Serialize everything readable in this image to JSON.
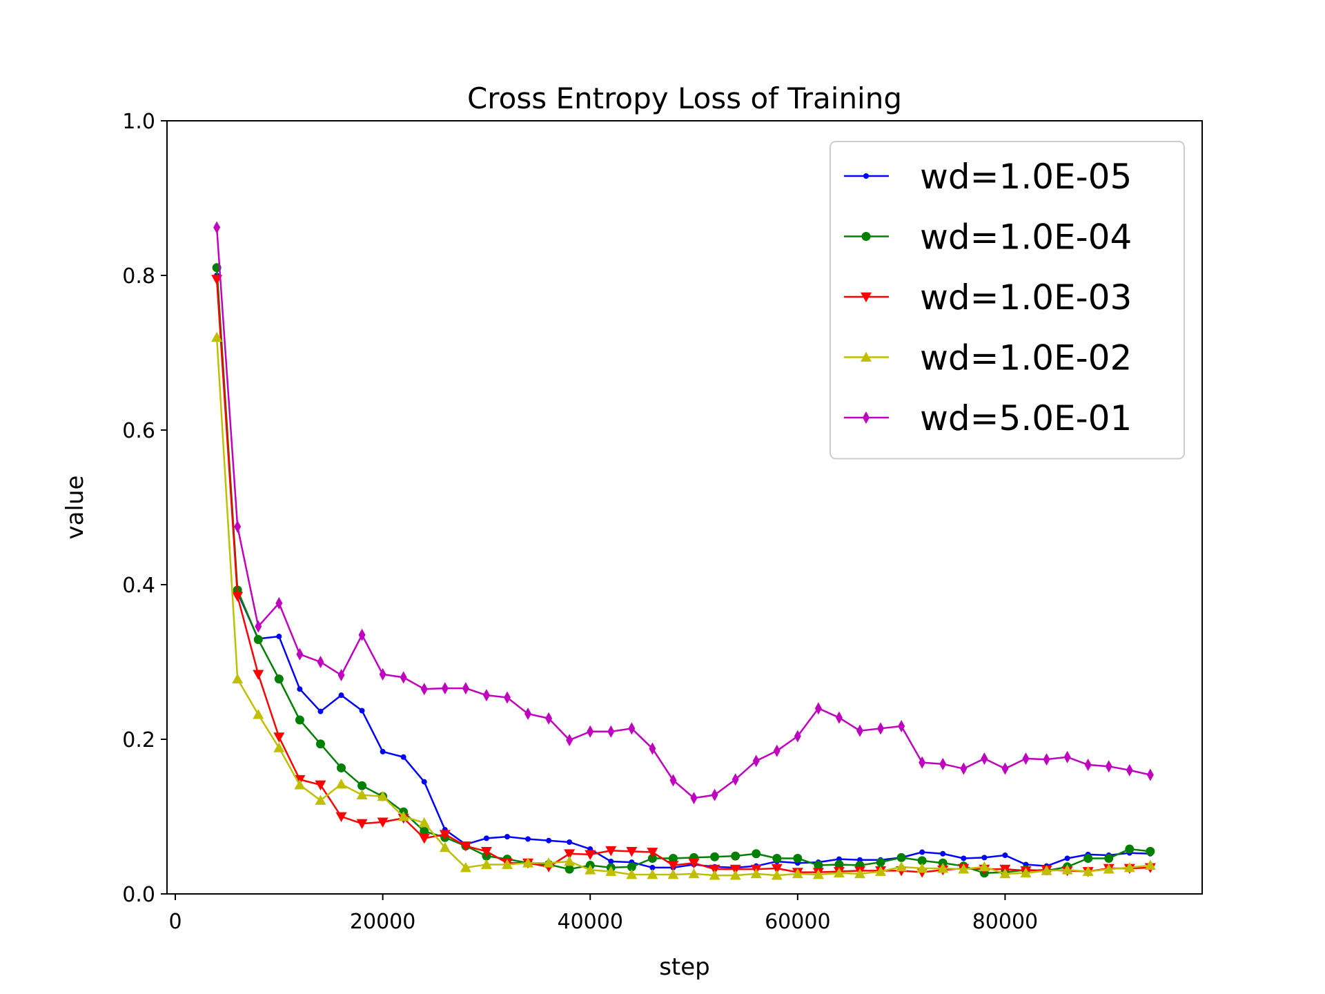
{
  "chart_data": {
    "type": "line",
    "title": "Cross Entropy Loss of Training",
    "xlabel": "step",
    "ylabel": "value",
    "xlim": [
      -800,
      99000
    ],
    "ylim": [
      0.0,
      1.0
    ],
    "xticks": [
      0,
      20000,
      40000,
      60000,
      80000
    ],
    "yticks": [
      0.0,
      0.2,
      0.4,
      0.6,
      0.8,
      1.0
    ],
    "xtick_labels": [
      "0",
      "20000",
      "40000",
      "60000",
      "80000"
    ],
    "ytick_labels": [
      "0.0",
      "0.2",
      "0.4",
      "0.6",
      "0.8",
      "1.0"
    ],
    "grid": false,
    "legend_position": "upper-right",
    "x": [
      4000,
      6000,
      8000,
      10000,
      12000,
      14000,
      16000,
      18000,
      20000,
      22000,
      24000,
      26000,
      28000,
      30000,
      32000,
      34000,
      36000,
      38000,
      40000,
      42000,
      44000,
      46000,
      48000,
      50000,
      52000,
      54000,
      56000,
      58000,
      60000,
      62000,
      64000,
      66000,
      68000,
      70000,
      72000,
      74000,
      76000,
      78000,
      80000,
      82000,
      84000,
      86000,
      88000,
      90000,
      92000,
      94000
    ],
    "series": [
      {
        "name": "wd=1.0E-05",
        "color": "#0000ff",
        "marker": "point",
        "values": [
          0.8,
          0.39,
          0.33,
          0.333,
          0.265,
          0.236,
          0.257,
          0.237,
          0.184,
          0.177,
          0.145,
          0.083,
          0.064,
          0.072,
          0.074,
          0.071,
          0.069,
          0.067,
          0.058,
          0.042,
          0.041,
          0.034,
          0.034,
          0.038,
          0.035,
          0.034,
          0.036,
          0.042,
          0.04,
          0.041,
          0.045,
          0.044,
          0.044,
          0.047,
          0.054,
          0.052,
          0.046,
          0.047,
          0.05,
          0.038,
          0.036,
          0.046,
          0.051,
          0.05,
          0.053,
          0.052
        ]
      },
      {
        "name": "wd=1.0E-04",
        "color": "#008000",
        "marker": "circle",
        "values": [
          0.81,
          0.393,
          0.329,
          0.278,
          0.225,
          0.194,
          0.163,
          0.14,
          0.126,
          0.106,
          0.081,
          0.073,
          0.062,
          0.049,
          0.045,
          0.04,
          0.038,
          0.032,
          0.037,
          0.034,
          0.035,
          0.046,
          0.046,
          0.047,
          0.048,
          0.049,
          0.052,
          0.046,
          0.046,
          0.037,
          0.038,
          0.037,
          0.041,
          0.047,
          0.043,
          0.04,
          0.036,
          0.027,
          0.028,
          0.031,
          0.03,
          0.035,
          0.046,
          0.046,
          0.058,
          0.055
        ]
      },
      {
        "name": "wd=1.0E-03",
        "color": "#ff0000",
        "marker": "triangle-down",
        "values": [
          0.795,
          0.385,
          0.284,
          0.203,
          0.148,
          0.141,
          0.1,
          0.091,
          0.093,
          0.098,
          0.072,
          0.077,
          0.062,
          0.055,
          0.04,
          0.04,
          0.035,
          0.052,
          0.051,
          0.056,
          0.055,
          0.054,
          0.037,
          0.04,
          0.032,
          0.032,
          0.032,
          0.033,
          0.028,
          0.028,
          0.029,
          0.03,
          0.03,
          0.03,
          0.028,
          0.031,
          0.033,
          0.032,
          0.032,
          0.03,
          0.031,
          0.03,
          0.029,
          0.033,
          0.033,
          0.034
        ]
      },
      {
        "name": "wd=1.0E-02",
        "color": "#bfbf00",
        "marker": "triangle-up",
        "values": [
          0.72,
          0.278,
          0.232,
          0.189,
          0.141,
          0.121,
          0.142,
          0.128,
          0.126,
          0.1,
          0.092,
          0.06,
          0.034,
          0.038,
          0.038,
          0.04,
          0.04,
          0.042,
          0.031,
          0.029,
          0.025,
          0.025,
          0.025,
          0.026,
          0.024,
          0.024,
          0.026,
          0.024,
          0.026,
          0.025,
          0.027,
          0.026,
          0.029,
          0.035,
          0.033,
          0.033,
          0.032,
          0.035,
          0.026,
          0.027,
          0.03,
          0.031,
          0.029,
          0.032,
          0.034,
          0.037
        ]
      },
      {
        "name": "wd=5.0E-01",
        "color": "#bf00bf",
        "marker": "thin-diamond",
        "values": [
          0.862,
          0.475,
          0.346,
          0.376,
          0.31,
          0.3,
          0.283,
          0.335,
          0.284,
          0.28,
          0.265,
          0.266,
          0.266,
          0.257,
          0.254,
          0.233,
          0.227,
          0.199,
          0.21,
          0.21,
          0.214,
          0.188,
          0.147,
          0.124,
          0.128,
          0.148,
          0.172,
          0.185,
          0.204,
          0.24,
          0.228,
          0.211,
          0.214,
          0.217,
          0.17,
          0.168,
          0.162,
          0.175,
          0.162,
          0.175,
          0.174,
          0.177,
          0.167,
          0.165,
          0.16,
          0.154
        ]
      }
    ]
  }
}
